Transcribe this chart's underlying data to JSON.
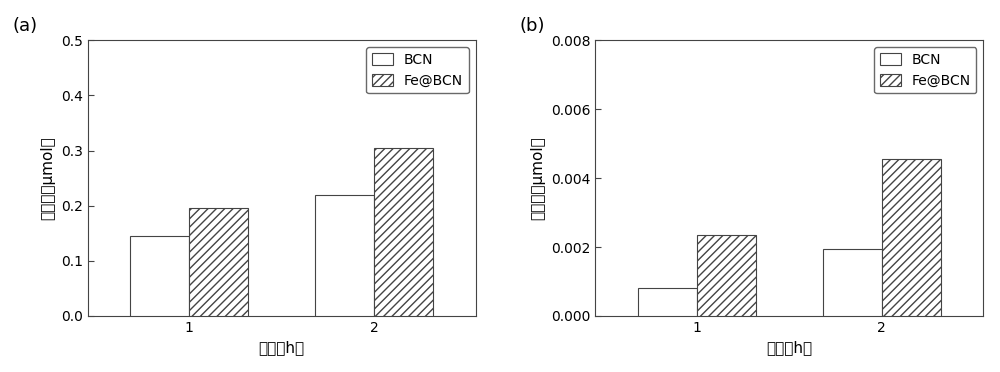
{
  "subplot_a": {
    "label": "(a)",
    "bcn_values": [
      0.145,
      0.22
    ],
    "fe_bcn_values": [
      0.195,
      0.305
    ],
    "x_ticks": [
      "1",
      "2"
    ],
    "x_label": "时间（h）",
    "y_label": "析氢量（μmol）",
    "ylim": [
      0.0,
      0.5
    ],
    "yticks": [
      0.0,
      0.1,
      0.2,
      0.3,
      0.4,
      0.5
    ],
    "ytick_labels": [
      "0.0",
      "0.1",
      "0.2",
      "0.3",
      "0.4",
      "0.5"
    ]
  },
  "subplot_b": {
    "label": "(b)",
    "bcn_values": [
      0.0008,
      0.00195
    ],
    "fe_bcn_values": [
      0.00235,
      0.00455
    ],
    "x_ticks": [
      "1",
      "2"
    ],
    "x_label": "时间（h）",
    "y_label": "析氢量（μmol）",
    "ylim": [
      0.0,
      0.008
    ],
    "yticks": [
      0.0,
      0.002,
      0.004,
      0.006,
      0.008
    ],
    "ytick_labels": [
      "0.000",
      "0.002",
      "0.004",
      "0.006",
      "0.008"
    ]
  },
  "legend_labels": [
    "BCN",
    "Fe@BCN"
  ],
  "bar_width": 0.32,
  "bcn_color": "white",
  "bcn_edgecolor": "#444444",
  "fe_bcn_color": "white",
  "fe_bcn_edgecolor": "#444444",
  "hatch_pattern": "////",
  "background_color": "#ffffff",
  "tick_fontsize": 10,
  "label_fontsize": 11,
  "legend_fontsize": 10
}
